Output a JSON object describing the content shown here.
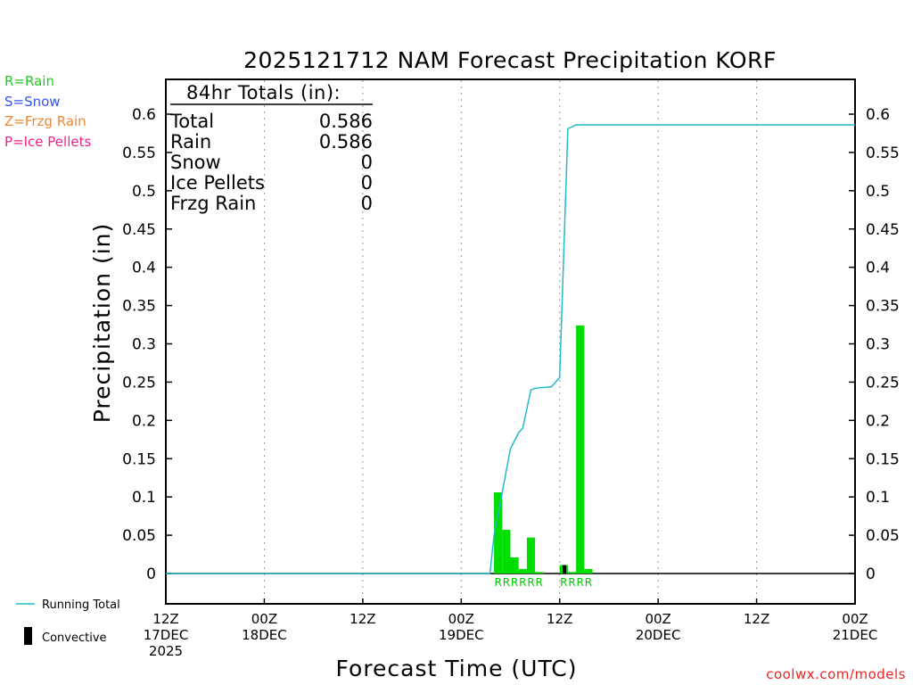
{
  "legend_types": [
    {
      "text": "R=Rain",
      "color": "#22cc22"
    },
    {
      "text": "S=Snow",
      "color": "#3355ee"
    },
    {
      "text": "Z=Frzg Rain",
      "color": "#ee8833"
    },
    {
      "text": "P=Ice Pellets",
      "color": "#ee2288"
    }
  ],
  "bottom_legend": {
    "running_total": "Running Total",
    "convective": "Convective"
  },
  "credit": "coolwx.com/models",
  "colors": {
    "rain_bar": "#00dd00",
    "running_total": "#22bbcc",
    "convective": "#000000",
    "rain_marker": "#00cc00"
  },
  "chart_data": {
    "type": "bar",
    "title": "2025121712 NAM Forecast Precipitation KORF",
    "xlabel": "Forecast Time (UTC)",
    "ylabel": "Precipitation (in)",
    "ylim": [
      -0.04,
      0.64
    ],
    "xlim_hours": [
      0,
      84
    ],
    "grid": "vertical dotted lines at each 12-hour tick",
    "yticks": [
      0,
      0.05,
      0.1,
      0.15,
      0.2,
      0.25,
      0.3,
      0.35,
      0.4,
      0.45,
      0.5,
      0.55,
      0.6
    ],
    "ytick_labels": [
      "0",
      "0.05",
      "0.1",
      "0.15",
      "0.2",
      "0.25",
      "0.3",
      "0.35",
      "0.4",
      "0.45",
      "0.5",
      "0.55",
      "0.6"
    ],
    "xticks": [
      {
        "hour": 0,
        "lines": [
          "12Z",
          "17DEC",
          "2025"
        ]
      },
      {
        "hour": 12,
        "lines": [
          "00Z",
          "18DEC"
        ]
      },
      {
        "hour": 24,
        "lines": [
          "12Z"
        ]
      },
      {
        "hour": 36,
        "lines": [
          "00Z",
          "19DEC"
        ]
      },
      {
        "hour": 48,
        "lines": [
          "12Z"
        ]
      },
      {
        "hour": 60,
        "lines": [
          "00Z",
          "20DEC"
        ]
      },
      {
        "hour": 72,
        "lines": [
          "12Z"
        ]
      },
      {
        "hour": 84,
        "lines": [
          "00Z",
          "21DEC"
        ]
      }
    ],
    "totals_box": {
      "title": "84hr Totals (in):",
      "rows": [
        {
          "label": "Total",
          "value": "0.586"
        },
        {
          "label": "Rain",
          "value": "0.586"
        },
        {
          "label": "Snow",
          "value": "0"
        },
        {
          "label": "Ice Pellets",
          "value": "0"
        },
        {
          "label": "Frzg Rain",
          "value": "0"
        }
      ]
    },
    "series": [
      {
        "name": "Rain",
        "kind": "bar",
        "bars": [
          {
            "hour": 40,
            "value": 0.106
          },
          {
            "hour": 41,
            "value": 0.057
          },
          {
            "hour": 42,
            "value": 0.021
          },
          {
            "hour": 43,
            "value": 0.006
          },
          {
            "hour": 44,
            "value": 0.047
          },
          {
            "hour": 45,
            "value": 0.002
          },
          {
            "hour": 48,
            "value": 0.011
          },
          {
            "hour": 49,
            "value": 0.002
          },
          {
            "hour": 50,
            "value": 0.324
          },
          {
            "hour": 51,
            "value": 0.006
          }
        ]
      },
      {
        "name": "Convective",
        "kind": "bar",
        "bars": [
          {
            "hour": 48,
            "value": 0.011
          }
        ]
      },
      {
        "name": "Running Total",
        "kind": "line",
        "points": [
          [
            0,
            0
          ],
          [
            39.5,
            0
          ],
          [
            40,
            0.05
          ],
          [
            41,
            0.106
          ],
          [
            42,
            0.163
          ],
          [
            43,
            0.184
          ],
          [
            43.5,
            0.19
          ],
          [
            44.5,
            0.24
          ],
          [
            45,
            0.242
          ],
          [
            46,
            0.243
          ],
          [
            47,
            0.244
          ],
          [
            48,
            0.256
          ],
          [
            49,
            0.581
          ],
          [
            50,
            0.586
          ],
          [
            84,
            0.586
          ]
        ]
      }
    ],
    "precip_type_markers": [
      {
        "hour": 40,
        "text": "R"
      },
      {
        "hour": 41,
        "text": "R"
      },
      {
        "hour": 42,
        "text": "R"
      },
      {
        "hour": 43,
        "text": "R"
      },
      {
        "hour": 44,
        "text": "R"
      },
      {
        "hour": 45,
        "text": "R"
      },
      {
        "hour": 48,
        "text": "R"
      },
      {
        "hour": 49,
        "text": "R"
      },
      {
        "hour": 50,
        "text": "R"
      },
      {
        "hour": 51,
        "text": "R"
      }
    ]
  }
}
